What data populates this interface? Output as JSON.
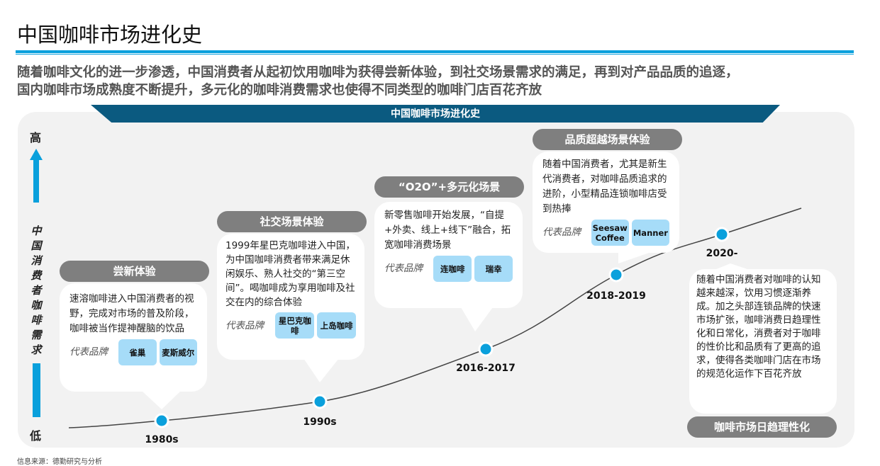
{
  "title": "中国咖啡市场进化史",
  "subtitle": [
    "随着咖啡文化的进一步渗透，中国消费者从起初饮用咖啡为获得尝新体验，到社交场景需求的满足，再到对产品品质的追逐，",
    "国内咖啡市场成熟度不断提升，多元化的咖啡消费需求也使得不同类型的咖啡门店百花齐放"
  ],
  "banner": "中国咖啡市场进化史",
  "axis": {
    "high": "高",
    "low": "低",
    "label": "中国消费者咖啡需求"
  },
  "brand_label": "代表品牌",
  "stages": [
    {
      "year": "1980s",
      "title": "尝新体验",
      "text": "速溶咖啡进入中国消费者的视野，完成对市场的普及阶段，咖啡被当作提神醒脑的饮品",
      "brands": [
        "雀巢",
        "麦斯威尔"
      ]
    },
    {
      "year": "1990s",
      "title": "社交场景体验",
      "text": "1999年星巴克咖啡进入中国，为中国咖啡消费者带来满足休闲娱乐、熟人社交的“第三空间”。喝咖啡成为享用咖啡及社交在内的综合体验",
      "brands": [
        "星巴克咖啡",
        "上岛咖啡"
      ]
    },
    {
      "year": "2016-2017",
      "title": "“O2O”+多元化场景",
      "text": "新零售咖啡开始发展，“自提+外卖、线上+线下”融合，拓宽咖啡消费场景",
      "brands": [
        "连咖啡",
        "瑞幸"
      ]
    },
    {
      "year": "2018-2019",
      "title": "品质超越场景体验",
      "text": "随着中国消费者，尤其是新生代消费者，对咖啡品质追求的进阶，小型精品连锁咖啡店受到热捧",
      "brands": [
        "Seesaw Coffee",
        "Manner"
      ]
    },
    {
      "year": "2020-",
      "title": "咖啡市场日趋理性化",
      "text": "随着中国消费者对咖啡的认知越来越深，饮用习惯逐渐养成。加之头部连锁品牌的快速市场扩张，咖啡消费日趋理性化和日常化，消费者对于咖啡的性价比和品质有了更高的追求，使得各类咖啡门店在市场的规范化运作下百花齐放"
    }
  ],
  "source": "信息来源：德勤研究与分析",
  "colors": {
    "accent": "#0aa0dc",
    "banner": "#0b5a80",
    "pill": "#7f7f7f",
    "chip": "#a6dcf8",
    "panel": "#f2f2f2"
  }
}
